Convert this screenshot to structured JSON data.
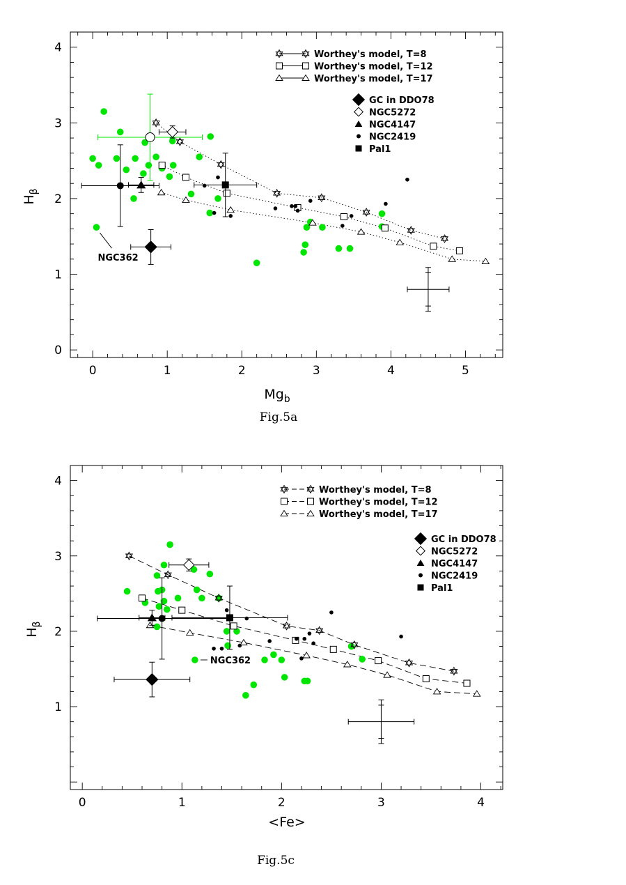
{
  "colors": {
    "green": "#00e600",
    "black": "#000000"
  },
  "chart_data": [
    {
      "type": "scatter",
      "caption": "Fig.5a",
      "xlabel": "Mg",
      "xlabel_sub": "b",
      "ylabel": "H",
      "ylabel_sub": "β",
      "xlim": [
        -0.3,
        5.5
      ],
      "ylim": [
        -0.1,
        4.2
      ],
      "xticks": [
        0,
        1,
        2,
        3,
        4,
        5
      ],
      "yticks": [
        0,
        1,
        2,
        3,
        4
      ],
      "legend": [
        {
          "label": "Worthey's model, T=8",
          "marker": "star",
          "line": "solid"
        },
        {
          "label": "Worthey's model, T=12",
          "marker": "square",
          "line": "solid"
        },
        {
          "label": "Worthey's model, T=17",
          "marker": "triangle",
          "line": "solid"
        },
        {
          "label": "GC in DDO78",
          "marker": "diamond-filled"
        },
        {
          "label": "NGC5272",
          "marker": "diamond-open"
        },
        {
          "label": "NGC4147",
          "marker": "triangle-filled"
        },
        {
          "label": "NGC2419",
          "marker": "circle-filled"
        },
        {
          "label": "Pal1",
          "marker": "square-filled"
        }
      ],
      "model_line_style": "dotted",
      "models": [
        {
          "name": "Worthey's model, T=8",
          "marker": "star",
          "points": [
            [
              0.85,
              3.0
            ],
            [
              1.17,
              2.75
            ],
            [
              1.72,
              2.45
            ],
            [
              2.47,
              2.07
            ],
            [
              3.07,
              2.01
            ],
            [
              3.67,
              1.82
            ],
            [
              4.27,
              1.58
            ],
            [
              4.72,
              1.47
            ]
          ]
        },
        {
          "name": "Worthey's model, T=12",
          "marker": "square",
          "points": [
            [
              0.93,
              2.44
            ],
            [
              1.25,
              2.28
            ],
            [
              1.8,
              2.07
            ],
            [
              2.75,
              1.88
            ],
            [
              3.37,
              1.76
            ],
            [
              3.92,
              1.61
            ],
            [
              4.57,
              1.37
            ],
            [
              4.92,
              1.31
            ]
          ]
        },
        {
          "name": "Worthey's model, T=17",
          "marker": "triangle",
          "points": [
            [
              0.92,
              2.08
            ],
            [
              1.25,
              1.98
            ],
            [
              1.85,
              1.85
            ],
            [
              2.95,
              1.68
            ],
            [
              3.6,
              1.56
            ],
            [
              4.12,
              1.42
            ],
            [
              4.82,
              1.2
            ],
            [
              5.27,
              1.17
            ]
          ]
        }
      ],
      "green_points": [
        [
          0.15,
          3.15
        ],
        [
          0.37,
          2.88
        ],
        [
          0.0,
          2.53
        ],
        [
          0.08,
          2.44
        ],
        [
          0.32,
          2.53
        ],
        [
          0.45,
          2.38
        ],
        [
          0.57,
          2.53
        ],
        [
          0.68,
          2.33
        ],
        [
          0.75,
          2.44
        ],
        [
          0.7,
          2.74
        ],
        [
          0.85,
          2.55
        ],
        [
          0.93,
          2.4
        ],
        [
          1.03,
          2.29
        ],
        [
          1.08,
          2.44
        ],
        [
          1.07,
          2.76
        ],
        [
          1.32,
          2.06
        ],
        [
          1.43,
          2.55
        ],
        [
          1.58,
          2.82
        ],
        [
          1.68,
          2.0
        ],
        [
          1.57,
          1.81
        ],
        [
          0.55,
          2.0
        ],
        [
          0.05,
          1.62
        ],
        [
          2.2,
          1.15
        ],
        [
          2.85,
          1.39
        ],
        [
          2.83,
          1.29
        ],
        [
          2.87,
          1.62
        ],
        [
          2.92,
          1.69
        ],
        [
          3.08,
          1.62
        ],
        [
          3.3,
          1.34
        ],
        [
          3.45,
          1.34
        ],
        [
          3.88,
          1.63
        ],
        [
          3.88,
          1.8
        ]
      ],
      "ngc2419_points": [
        [
          1.5,
          2.17
        ],
        [
          1.68,
          2.28
        ],
        [
          1.63,
          1.81
        ],
        [
          1.85,
          1.77
        ],
        [
          2.45,
          1.87
        ],
        [
          2.67,
          1.9
        ],
        [
          2.72,
          1.9
        ],
        [
          2.75,
          1.84
        ],
        [
          2.92,
          1.97
        ],
        [
          3.47,
          1.77
        ],
        [
          3.35,
          1.64
        ],
        [
          3.93,
          1.93
        ],
        [
          4.22,
          2.25
        ]
      ],
      "gc_ddo78": {
        "x": 0.78,
        "y": 1.36,
        "xerr": 0.27,
        "yerr": 0.23
      },
      "ngc5272": {
        "x": 1.07,
        "y": 2.88,
        "xerr": 0.18,
        "yerr": 0.08
      },
      "ngc4147": {
        "x": 0.65,
        "y": 2.18,
        "xerr": 0.17,
        "yerr": 0.1
      },
      "ngc2419_mean": {
        "x": 0.37,
        "y": 2.17,
        "xerr": 0.52,
        "yerr": 0.54
      },
      "pal1": {
        "x": 1.78,
        "y": 2.18,
        "xerr": 0.42,
        "yerr": 0.42
      },
      "green_errorbar": {
        "x": 0.77,
        "y": 2.81,
        "xerr": 0.7,
        "yerr": 0.57
      },
      "typical_errorbar": {
        "x": 4.5,
        "y": 0.8,
        "xerr": 0.28,
        "yerr": 0.29,
        "yerr_inner": 0.22
      },
      "annotation": {
        "text": "NGC362",
        "x": 0.05,
        "y": 1.62
      }
    },
    {
      "type": "scatter",
      "caption": "Fig.5c",
      "xlabel": "<Fe>",
      "xlabel_sub": "",
      "ylabel": "H",
      "ylabel_sub": "β",
      "xlim": [
        -0.12,
        4.22
      ],
      "ylim": [
        -0.1,
        4.2
      ],
      "xticks": [
        0,
        1,
        2,
        3,
        4
      ],
      "yticks": [
        1,
        2,
        3,
        4
      ],
      "legend": [
        {
          "label": "Worthey's model, T=8",
          "marker": "star",
          "line": "dashed"
        },
        {
          "label": "Worthey's model, T=12",
          "marker": "square",
          "line": "dashed"
        },
        {
          "label": "Worthey's model, T=17",
          "marker": "triangle",
          "line": "dashed"
        },
        {
          "label": "GC in DDO78",
          "marker": "diamond-filled"
        },
        {
          "label": "NGC5272",
          "marker": "diamond-open"
        },
        {
          "label": "NGC4147",
          "marker": "triangle-filled"
        },
        {
          "label": "NGC2419",
          "marker": "circle-filled"
        },
        {
          "label": "Pal1",
          "marker": "square-filled"
        }
      ],
      "model_line_style": "dashed",
      "models": [
        {
          "name": "Worthey's model, T=8",
          "marker": "star",
          "points": [
            [
              0.47,
              3.0
            ],
            [
              0.86,
              2.75
            ],
            [
              1.37,
              2.44
            ],
            [
              2.05,
              2.07
            ],
            [
              2.38,
              2.01
            ],
            [
              2.73,
              1.82
            ],
            [
              3.28,
              1.58
            ],
            [
              3.73,
              1.47
            ]
          ]
        },
        {
          "name": "Worthey's model, T=12",
          "marker": "square",
          "points": [
            [
              0.6,
              2.44
            ],
            [
              1.0,
              2.28
            ],
            [
              1.52,
              2.07
            ],
            [
              2.14,
              1.88
            ],
            [
              2.52,
              1.76
            ],
            [
              2.97,
              1.61
            ],
            [
              3.45,
              1.37
            ],
            [
              3.86,
              1.31
            ]
          ]
        },
        {
          "name": "Worthey's model, T=17",
          "marker": "triangle",
          "points": [
            [
              0.68,
              2.08
            ],
            [
              1.08,
              1.98
            ],
            [
              1.62,
              1.85
            ],
            [
              2.25,
              1.68
            ],
            [
              2.66,
              1.56
            ],
            [
              3.06,
              1.42
            ],
            [
              3.56,
              1.2
            ],
            [
              3.96,
              1.17
            ]
          ]
        }
      ],
      "green_points": [
        [
          0.88,
          3.15
        ],
        [
          0.82,
          2.88
        ],
        [
          0.75,
          2.74
        ],
        [
          1.12,
          2.82
        ],
        [
          1.28,
          2.76
        ],
        [
          1.37,
          2.44
        ],
        [
          0.45,
          2.53
        ],
        [
          0.76,
          2.53
        ],
        [
          0.8,
          2.55
        ],
        [
          0.96,
          2.44
        ],
        [
          0.63,
          2.38
        ],
        [
          0.82,
          2.4
        ],
        [
          1.15,
          2.55
        ],
        [
          1.2,
          2.44
        ],
        [
          0.77,
          2.33
        ],
        [
          0.85,
          2.29
        ],
        [
          0.75,
          2.06
        ],
        [
          1.45,
          2.0
        ],
        [
          1.55,
          2.0
        ],
        [
          1.13,
          1.62
        ],
        [
          1.46,
          1.81
        ],
        [
          1.83,
          1.62
        ],
        [
          1.92,
          1.69
        ],
        [
          2.0,
          1.62
        ],
        [
          2.03,
          1.39
        ],
        [
          2.23,
          1.34
        ],
        [
          2.26,
          1.34
        ],
        [
          2.7,
          1.8
        ],
        [
          2.81,
          1.63
        ],
        [
          1.72,
          1.29
        ],
        [
          1.64,
          1.15
        ]
      ],
      "ngc2419_points": [
        [
          1.45,
          2.28
        ],
        [
          1.32,
          1.77
        ],
        [
          1.4,
          1.77
        ],
        [
          1.58,
          1.81
        ],
        [
          1.65,
          2.17
        ],
        [
          1.88,
          1.87
        ],
        [
          2.15,
          1.9
        ],
        [
          2.23,
          1.9
        ],
        [
          2.28,
          1.97
        ],
        [
          2.32,
          1.84
        ],
        [
          2.2,
          1.64
        ],
        [
          2.5,
          2.25
        ],
        [
          3.2,
          1.93
        ]
      ],
      "gc_ddo78": {
        "x": 0.7,
        "y": 1.36,
        "xerr": 0.38,
        "yerr": 0.23
      },
      "ngc5272": {
        "x": 1.07,
        "y": 2.88,
        "xerr": 0.2,
        "yerr": 0.08
      },
      "ngc4147": {
        "x": 0.7,
        "y": 2.18,
        "xerr": 0.13,
        "yerr": 0.1
      },
      "ngc2419_mean": {
        "x": 0.8,
        "y": 2.17,
        "xerr": 0.65,
        "yerr": 0.54
      },
      "pal1": {
        "x": 1.48,
        "y": 2.18,
        "xerr": 0.58,
        "yerr": 0.42
      },
      "typical_errorbar": {
        "x": 3.0,
        "y": 0.8,
        "xerr": 0.33,
        "yerr": 0.29,
        "yerr_inner": 0.22
      },
      "annotation": {
        "text": "NGC362",
        "x": 1.13,
        "y": 1.62
      }
    }
  ]
}
